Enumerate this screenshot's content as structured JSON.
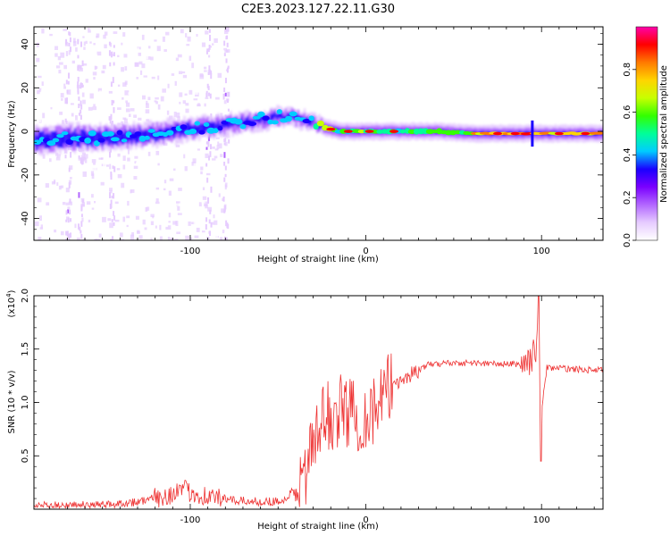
{
  "title": "C2E3.2023.127.22.11.G30",
  "chart_data": [
    {
      "type": "heatmap",
      "xlabel": "Height of straight line (km)",
      "ylabel": "Frequency (Hz)",
      "xlim": [
        -189,
        135
      ],
      "ylim": [
        -50,
        48
      ],
      "xticks": [
        -100,
        0,
        100
      ],
      "yticks": [
        -40,
        -20,
        0,
        20,
        40
      ],
      "colorbar": {
        "label": "Normalized spectral amplitude",
        "range": [
          0,
          1
        ],
        "ticks": [
          "0.0",
          "0.2",
          "0.4",
          "0.6",
          "0.8"
        ],
        "colors": [
          "#ffffff",
          "#e6ccff",
          "#b266ff",
          "#7a00ff",
          "#1a00ff",
          "#00ccff",
          "#00ff99",
          "#33ff00",
          "#c8ff00",
          "#ffd400",
          "#ff7a00",
          "#ff0000",
          "#ff00aa"
        ]
      },
      "center_track": {
        "x": [
          -189,
          -170,
          -150,
          -130,
          -110,
          -90,
          -70,
          -55,
          -45,
          -35,
          -25,
          -15,
          -5,
          5,
          20,
          40,
          60,
          80,
          95,
          110,
          135
        ],
        "frequency": [
          -4,
          -3,
          -3,
          -2,
          0,
          2,
          4,
          6,
          7,
          5,
          2,
          0,
          0,
          0,
          0,
          0,
          -1,
          -1,
          -1,
          -1,
          -1
        ]
      }
    },
    {
      "type": "line",
      "xlabel": "Height of straight line (km)",
      "ylabel": "SNR (10 * v/v)",
      "y_multiplier": "(x10",
      "y_multiplier_exp": "4",
      "y_multiplier_close": ")",
      "xlim": [
        -189,
        135
      ],
      "ylim": [
        0,
        2.0
      ],
      "xticks": [
        -100,
        0,
        100
      ],
      "yticks": [
        "0.5",
        "1.0",
        "1.5",
        "2.0"
      ],
      "color": "#ee3333",
      "series": [
        {
          "x": [
            -189,
            -150,
            -130,
            -115,
            -105,
            -90,
            -75,
            -60,
            -45,
            -38,
            -33,
            -28,
            -23,
            -18,
            -13,
            -8,
            -3,
            2,
            7,
            12,
            17,
            22,
            27,
            35,
            45,
            60,
            75,
            90,
            95,
            98,
            100,
            103,
            110,
            120,
            135
          ],
          "y": [
            0.03,
            0.04,
            0.07,
            0.12,
            0.18,
            0.12,
            0.08,
            0.07,
            0.08,
            0.18,
            0.45,
            0.65,
            0.9,
            0.85,
            0.95,
            0.9,
            0.85,
            0.9,
            0.95,
            1.1,
            1.2,
            1.22,
            1.28,
            1.35,
            1.37,
            1.37,
            1.36,
            1.36,
            1.42,
            1.6,
            0.9,
            1.33,
            1.32,
            1.31,
            1.3
          ]
        }
      ]
    }
  ]
}
